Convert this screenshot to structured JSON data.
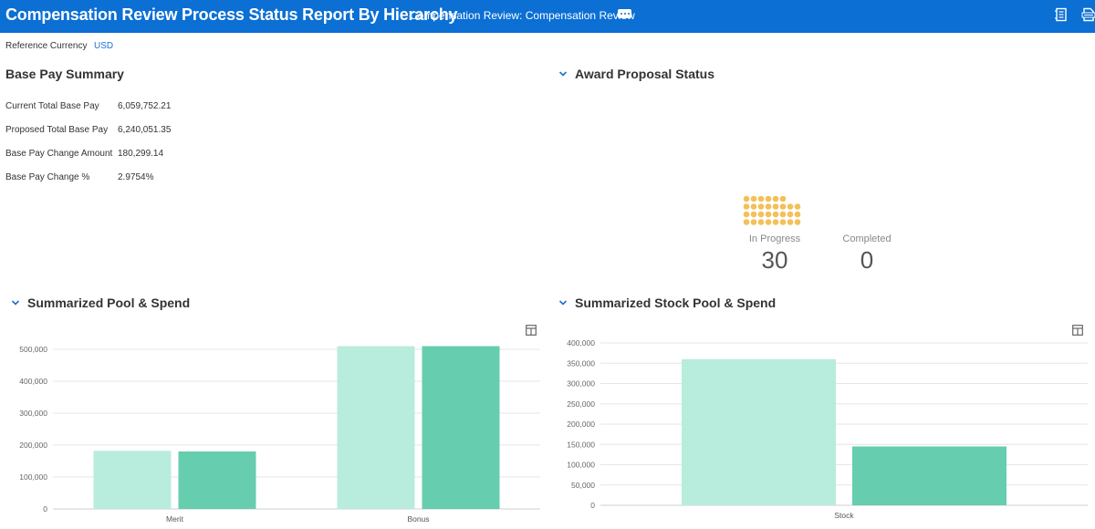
{
  "header": {
    "title": "Compensation Review Process Status Report By Hierarchy",
    "subtitle": "Compensation Review: Compensation Review",
    "icons": [
      "export-icon",
      "pdf-icon"
    ]
  },
  "reference": {
    "label": "Reference Currency",
    "value": "USD"
  },
  "base_pay_summary": {
    "title": "Base Pay Summary",
    "rows": [
      {
        "label": "Current Total Base Pay",
        "value": "6,059,752.21"
      },
      {
        "label": "Proposed Total Base Pay",
        "value": "6,240,051.35"
      },
      {
        "label": "Base Pay Change Amount",
        "value": "180,299.14"
      },
      {
        "label": "Base Pay Change %",
        "value": "2.9754%"
      }
    ]
  },
  "award_status": {
    "title": "Award Proposal Status",
    "dot_color": "#f4c05a",
    "in_progress": {
      "label": "In Progress",
      "count": "30"
    },
    "completed": {
      "label": "Completed",
      "count": "0"
    }
  },
  "pool_spend": {
    "title": "Summarized Pool & Spend"
  },
  "stock_pool_spend": {
    "title": "Summarized Stock Pool & Spend"
  },
  "chart_data": [
    {
      "type": "bar",
      "title": "Summarized Pool & Spend",
      "categories": [
        "Merit",
        "Bonus"
      ],
      "series": [
        {
          "values": [
            182000,
            510000
          ],
          "color": "#b8ecdd"
        },
        {
          "values": [
            180000,
            510000
          ],
          "color": "#66cdae"
        }
      ],
      "yticks": [
        "0",
        "100,000",
        "200,000",
        "300,000",
        "400,000",
        "500,000"
      ],
      "ylim": [
        0,
        500000
      ],
      "grid": true
    },
    {
      "type": "bar",
      "title": "Summarized Stock Pool & Spend",
      "categories": [
        "Stock"
      ],
      "series": [
        {
          "values": [
            360000
          ],
          "color": "#b8ecdd"
        },
        {
          "values": [
            145000
          ],
          "color": "#66cdae"
        }
      ],
      "yticks": [
        "0",
        "50,000",
        "100,000",
        "150,000",
        "200,000",
        "250,000",
        "300,000",
        "350,000",
        "400,000"
      ],
      "ylim": [
        0,
        400000
      ],
      "grid": true
    }
  ]
}
